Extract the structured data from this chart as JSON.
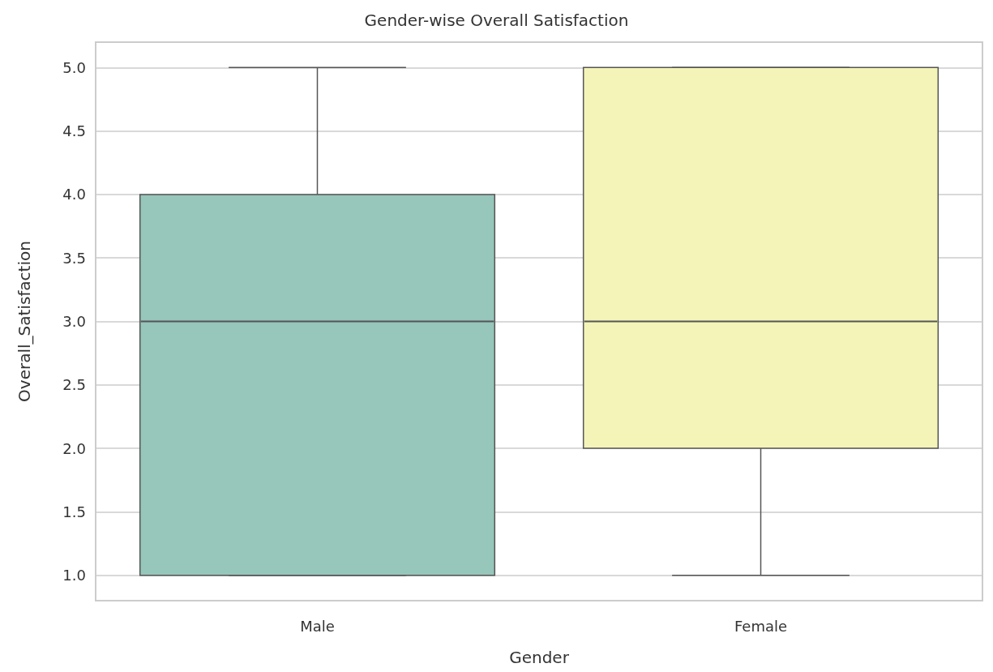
{
  "chart_data": {
    "type": "box",
    "title": "Gender-wise Overall Satisfaction",
    "xlabel": "Gender",
    "ylabel": "Overall_Satisfaction",
    "categories": [
      "Male",
      "Female"
    ],
    "boxes": [
      {
        "low": 1,
        "q1": 1,
        "median": 3,
        "q3": 4,
        "high": 5
      },
      {
        "low": 1,
        "q1": 2,
        "median": 3,
        "q3": 5,
        "high": 5
      }
    ],
    "colors": [
      "#97c6bb",
      "#f4f4b9"
    ],
    "ylim": [
      0.8,
      5.2
    ],
    "yticks": [
      {
        "value": 1,
        "label": "1.0"
      },
      {
        "value": 1.5,
        "label": "1.5"
      },
      {
        "value": 2,
        "label": "2.0"
      },
      {
        "value": 2.5,
        "label": "2.5"
      },
      {
        "value": 3,
        "label": "3.0"
      },
      {
        "value": 3.5,
        "label": "3.5"
      },
      {
        "value": 4,
        "label": "4.0"
      },
      {
        "value": 4.5,
        "label": "4.5"
      },
      {
        "value": 5,
        "label": "5.0"
      }
    ],
    "grid": "y"
  }
}
